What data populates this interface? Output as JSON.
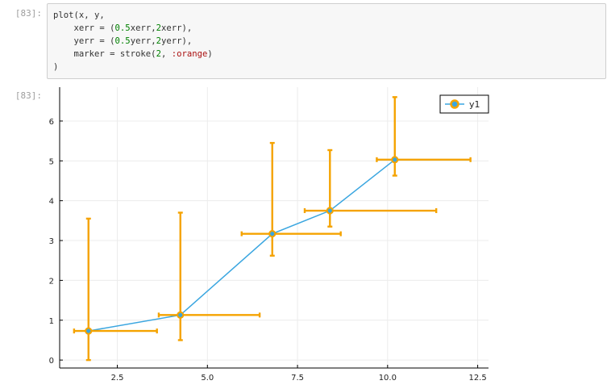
{
  "cell": {
    "input_prompt": "[83]:",
    "output_prompt": "[83]:",
    "code_lines": [
      [
        {
          "t": "plot(x, y,",
          "c": ""
        }
      ],
      [
        {
          "t": "    xerr = (",
          "c": ""
        },
        {
          "t": "0.5",
          "c": "num"
        },
        {
          "t": "xerr,",
          "c": ""
        },
        {
          "t": "2",
          "c": "num"
        },
        {
          "t": "xerr),",
          "c": ""
        }
      ],
      [
        {
          "t": "    yerr = (",
          "c": ""
        },
        {
          "t": "0.5",
          "c": "num"
        },
        {
          "t": "yerr,",
          "c": ""
        },
        {
          "t": "2",
          "c": "num"
        },
        {
          "t": "yerr),",
          "c": ""
        }
      ],
      [
        {
          "t": "    marker = stroke(",
          "c": ""
        },
        {
          "t": "2",
          "c": "num"
        },
        {
          "t": ", ",
          "c": ""
        },
        {
          "t": ":orange",
          "c": "sym"
        },
        {
          "t": ")",
          "c": ""
        }
      ],
      [
        {
          "t": ")",
          "c": ""
        }
      ]
    ]
  },
  "colors": {
    "line": "#3aa6e0",
    "errorbar": "#f5a300",
    "marker_fill": "#3aa6e0",
    "marker_stroke": "#f5a300",
    "grid": "#ececec",
    "axis": "#000000"
  },
  "chart_data": {
    "type": "line",
    "title": "",
    "xlabel": "",
    "ylabel": "",
    "xlim": [
      0.9,
      12.8
    ],
    "ylim": [
      -0.2,
      6.85
    ],
    "xticks": [
      2.5,
      5.0,
      7.5,
      10.0,
      12.5
    ],
    "xtick_labels": [
      "2.5",
      "5.0",
      "7.5",
      "10.0",
      "12.5"
    ],
    "yticks": [
      0,
      1,
      2,
      3,
      4,
      5,
      6
    ],
    "ytick_labels": [
      "0",
      "1",
      "2",
      "3",
      "4",
      "5",
      "6"
    ],
    "grid": true,
    "legend_position": "top-right",
    "series": [
      {
        "name": "y1",
        "points": [
          {
            "x": 1.7,
            "y": 0.73,
            "xlo": 1.3,
            "xhi": 3.6,
            "ylo": 0.0,
            "yhi": 3.55
          },
          {
            "x": 4.25,
            "y": 1.13,
            "xlo": 3.65,
            "xhi": 6.45,
            "ylo": 0.5,
            "yhi": 3.7
          },
          {
            "x": 6.8,
            "y": 3.17,
            "xlo": 5.95,
            "xhi": 8.7,
            "ylo": 2.62,
            "yhi": 5.45
          },
          {
            "x": 8.4,
            "y": 3.75,
            "xlo": 7.7,
            "xhi": 11.35,
            "ylo": 3.35,
            "yhi": 5.27
          },
          {
            "x": 10.2,
            "y": 5.03,
            "xlo": 9.7,
            "xhi": 12.3,
            "ylo": 4.63,
            "yhi": 6.6
          }
        ]
      }
    ]
  }
}
